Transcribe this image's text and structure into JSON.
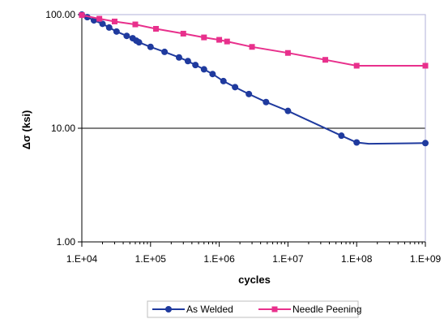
{
  "chart_data": {
    "type": "line",
    "xlabel": "cycles",
    "ylabel": "Δσ (ksi)",
    "x_scale": "log",
    "y_scale": "log",
    "xlim": [
      10000,
      1000000000
    ],
    "ylim": [
      1,
      100
    ],
    "grid": "horizontal",
    "legend_position": "bottom",
    "x_ticks": [
      "1.E+04",
      "1.E+05",
      "1.E+06",
      "1.E+07",
      "1.E+08",
      "1.E+09"
    ],
    "x_tick_values": [
      10000,
      100000,
      1000000,
      10000000,
      100000000,
      1000000000
    ],
    "y_ticks": [
      "1.00",
      "10.00",
      "100.00"
    ],
    "y_tick_values": [
      1,
      10,
      100
    ],
    "series": [
      {
        "name": "As Welded",
        "color": "#1f3a9e",
        "marker": "circle",
        "points": [
          {
            "x": 10000,
            "y": 100,
            "marker": true
          },
          {
            "x": 12000,
            "y": 95,
            "marker": true
          },
          {
            "x": 15000,
            "y": 89,
            "marker": true
          },
          {
            "x": 20000,
            "y": 83,
            "marker": true
          },
          {
            "x": 25000,
            "y": 77,
            "marker": true
          },
          {
            "x": 32000,
            "y": 71,
            "marker": true
          },
          {
            "x": 45000,
            "y": 65,
            "marker": true
          },
          {
            "x": 55000,
            "y": 62,
            "marker": true
          },
          {
            "x": 62000,
            "y": 59,
            "marker": true
          },
          {
            "x": 68000,
            "y": 57,
            "marker": true
          },
          {
            "x": 100000,
            "y": 52,
            "marker": true
          },
          {
            "x": 160000,
            "y": 47,
            "marker": true
          },
          {
            "x": 260000,
            "y": 42,
            "marker": true
          },
          {
            "x": 350000,
            "y": 39,
            "marker": true
          },
          {
            "x": 450000,
            "y": 36,
            "marker": true
          },
          {
            "x": 600000,
            "y": 33,
            "marker": true
          },
          {
            "x": 800000,
            "y": 30,
            "marker": true
          },
          {
            "x": 1150000,
            "y": 26,
            "marker": true
          },
          {
            "x": 1700000,
            "y": 23,
            "marker": true
          },
          {
            "x": 2700000,
            "y": 20,
            "marker": true
          },
          {
            "x": 4800000,
            "y": 17,
            "marker": true
          },
          {
            "x": 10000000,
            "y": 14.2,
            "marker": true
          },
          {
            "x": 60000000,
            "y": 8.6,
            "marker": true
          },
          {
            "x": 100000000,
            "y": 7.5,
            "marker": true
          },
          {
            "x": 150000000,
            "y": 7.3,
            "marker": false
          },
          {
            "x": 1000000000,
            "y": 7.4,
            "marker": true
          }
        ]
      },
      {
        "name": "Needle Peening",
        "color": "#e8308c",
        "marker": "square",
        "points": [
          {
            "x": 10000,
            "y": 99,
            "marker": true
          },
          {
            "x": 18000,
            "y": 92,
            "marker": true
          },
          {
            "x": 30000,
            "y": 87,
            "marker": true
          },
          {
            "x": 60000,
            "y": 82,
            "marker": true
          },
          {
            "x": 120000,
            "y": 75,
            "marker": true
          },
          {
            "x": 300000,
            "y": 68,
            "marker": true
          },
          {
            "x": 600000,
            "y": 63,
            "marker": true
          },
          {
            "x": 1000000,
            "y": 60,
            "marker": true
          },
          {
            "x": 1300000,
            "y": 58,
            "marker": true
          },
          {
            "x": 3000000,
            "y": 52,
            "marker": true
          },
          {
            "x": 10000000,
            "y": 46,
            "marker": true
          },
          {
            "x": 35000000,
            "y": 40,
            "marker": true
          },
          {
            "x": 100000000,
            "y": 35.5,
            "marker": true
          },
          {
            "x": 1000000000,
            "y": 35.5,
            "marker": true
          }
        ]
      }
    ]
  }
}
